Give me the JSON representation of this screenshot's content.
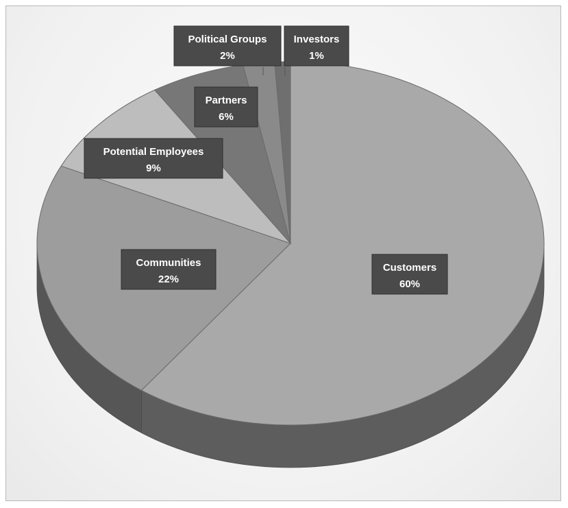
{
  "chart_data": {
    "type": "pie",
    "style": "3d",
    "title": "",
    "legend": "none",
    "slices": [
      {
        "label": "Customers",
        "value": 60,
        "value_label": "60%",
        "color": "#a9a9a9"
      },
      {
        "label": "Communities",
        "value": 22,
        "value_label": "22%",
        "color": "#9d9d9d"
      },
      {
        "label": "Potential Employees",
        "value": 9,
        "value_label": "9%",
        "color": "#bdbdbd"
      },
      {
        "label": "Partners",
        "value": 6,
        "value_label": "6%",
        "color": "#777777"
      },
      {
        "label": "Political Groups",
        "value": 2,
        "value_label": "2%",
        "color": "#8a8a8a"
      },
      {
        "label": "Investors",
        "value": 1,
        "value_label": "1%",
        "color": "#6f6f6f"
      }
    ]
  }
}
